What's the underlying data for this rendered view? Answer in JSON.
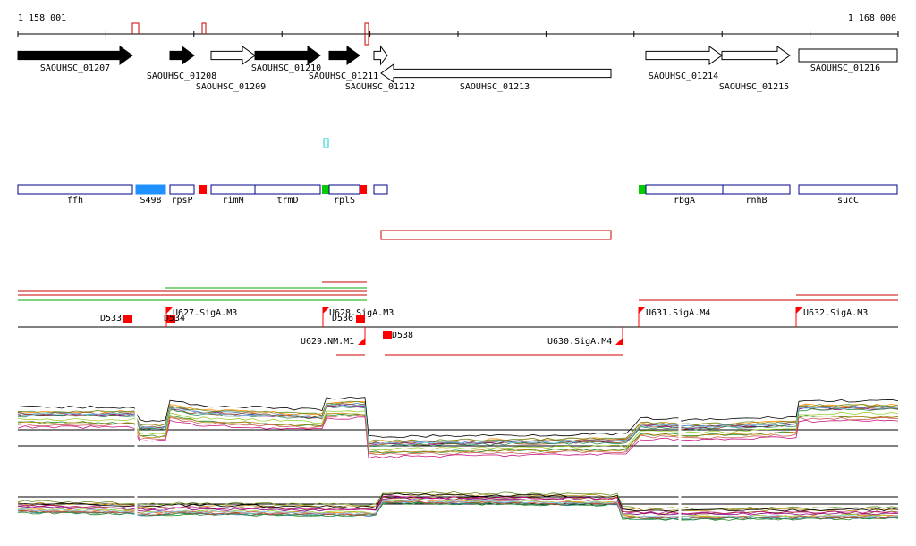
{
  "ruler": {
    "start": "1 158 001",
    "end": "1 168 000"
  },
  "genes": [
    {
      "label": "SAOUHSC_01207"
    },
    {
      "label": "SAOUHSC_01208"
    },
    {
      "label": "SAOUHSC_01209"
    },
    {
      "label": "SAOUHSC_01210"
    },
    {
      "label": "SAOUHSC_01211"
    },
    {
      "label": "SAOUHSC_01212"
    },
    {
      "label": "SAOUHSC_01213"
    },
    {
      "label": "SAOUHSC_01214"
    },
    {
      "label": "SAOUHSC_01215"
    },
    {
      "label": "SAOUHSC_01216"
    }
  ],
  "features": [
    {
      "label": "ffh"
    },
    {
      "label": "S498"
    },
    {
      "label": "rpsP"
    },
    {
      "label": "rimM"
    },
    {
      "label": "trmD"
    },
    {
      "label": "rplS"
    },
    {
      "label": "rbgA"
    },
    {
      "label": "rnhB"
    },
    {
      "label": "sucC"
    }
  ],
  "tss": [
    {
      "label": "D533"
    },
    {
      "label": "D534"
    },
    {
      "label": "U627.SigA.M3"
    },
    {
      "label": "U628.SigA.M3"
    },
    {
      "label": "D536"
    },
    {
      "label": "U629.NM.M1"
    },
    {
      "label": "D538"
    },
    {
      "label": "U630.SigA.M4"
    },
    {
      "label": "U631.SigA.M4"
    },
    {
      "label": "U632.SigA.M3"
    }
  ]
}
